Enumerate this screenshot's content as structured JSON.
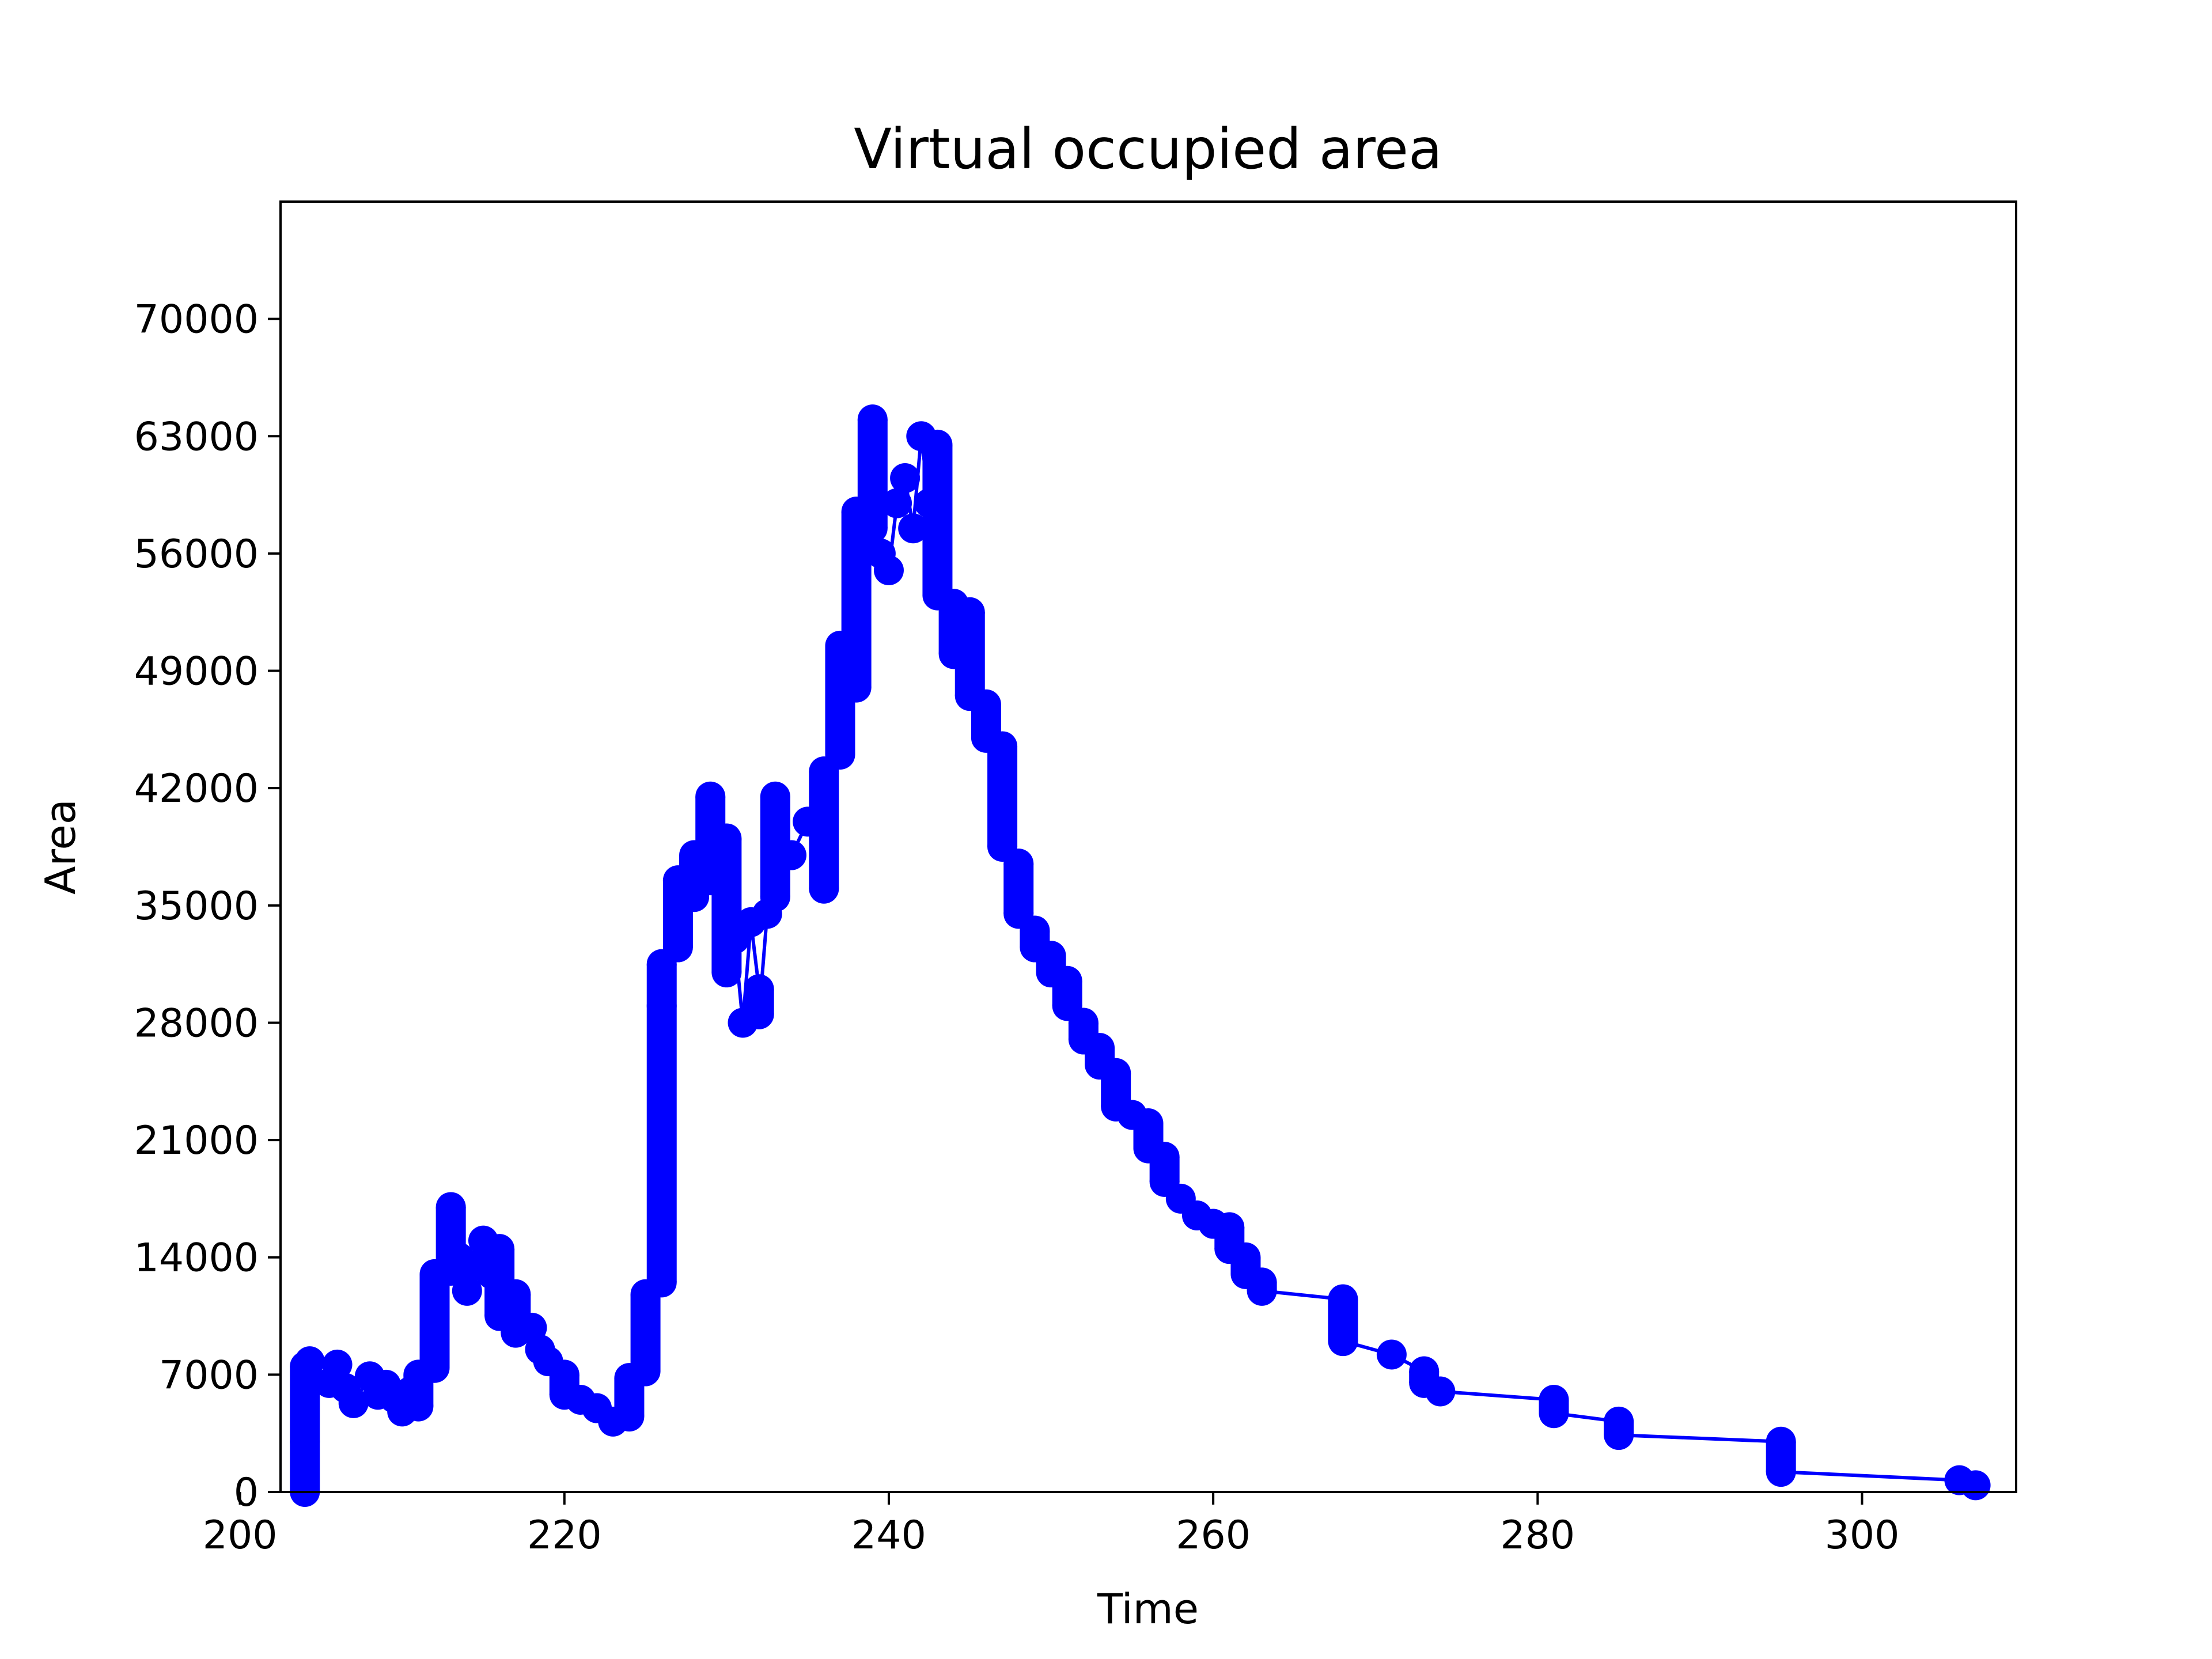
{
  "chart_data": {
    "type": "line",
    "title": "Virtual occupied area",
    "xlabel": "Time",
    "ylabel": "Area",
    "xlim": [
      202.5,
      309.5
    ],
    "ylim": [
      0,
      77000
    ],
    "xticks": [
      200,
      220,
      240,
      260,
      280,
      300
    ],
    "yticks": [
      0,
      7000,
      14000,
      21000,
      28000,
      35000,
      42000,
      49000,
      56000,
      63000,
      70000
    ],
    "grid": false,
    "legend": "none",
    "color": "#0000ff",
    "series": [
      {
        "marker": "circle",
        "points": [
          [
            204,
            0
          ],
          [
            204,
            3000
          ],
          [
            204,
            7500
          ],
          [
            204.3,
            7800
          ],
          [
            205.5,
            6500
          ],
          [
            206,
            7600
          ],
          [
            206.5,
            6200
          ],
          [
            207,
            5300
          ],
          [
            208,
            6900
          ],
          [
            208.5,
            5800
          ],
          [
            209,
            6400
          ],
          [
            209.5,
            5600
          ],
          [
            210,
            4800
          ],
          [
            210.5,
            6000
          ],
          [
            211,
            5100
          ],
          [
            211,
            7000
          ],
          [
            212,
            7400
          ],
          [
            212,
            13000
          ],
          [
            213,
            13200
          ],
          [
            213,
            17000
          ],
          [
            213.5,
            14000
          ],
          [
            214,
            12000
          ],
          [
            214.5,
            13500
          ],
          [
            215,
            15000
          ],
          [
            215.5,
            13000
          ],
          [
            216,
            14500
          ],
          [
            216,
            10500
          ],
          [
            217,
            11800
          ],
          [
            217,
            9500
          ],
          [
            218,
            9800
          ],
          [
            218.5,
            8500
          ],
          [
            219,
            7800
          ],
          [
            220,
            7000
          ],
          [
            220,
            5800
          ],
          [
            221,
            5500
          ],
          [
            222,
            5000
          ],
          [
            223,
            4200
          ],
          [
            224,
            4500
          ],
          [
            224,
            6800
          ],
          [
            225,
            7200
          ],
          [
            225,
            11800
          ],
          [
            226,
            12500
          ],
          [
            226,
            29000
          ],
          [
            226,
            31500
          ],
          [
            227,
            32500
          ],
          [
            227,
            36500
          ],
          [
            228,
            35500
          ],
          [
            228,
            38000
          ],
          [
            229,
            36500
          ],
          [
            229,
            41500
          ],
          [
            229.5,
            37000
          ],
          [
            230,
            39000
          ],
          [
            230,
            31000
          ],
          [
            230.5,
            33000
          ],
          [
            231,
            28000
          ],
          [
            231.5,
            34000
          ],
          [
            232,
            30000
          ],
          [
            232,
            28500
          ],
          [
            232.5,
            34500
          ],
          [
            233,
            35500
          ],
          [
            233,
            41500
          ],
          [
            234,
            38000
          ],
          [
            235,
            40000
          ],
          [
            236,
            36000
          ],
          [
            236,
            43000
          ],
          [
            237,
            44000
          ],
          [
            237,
            50500
          ],
          [
            238,
            48000
          ],
          [
            238,
            58500
          ],
          [
            239,
            57500
          ],
          [
            239,
            64000
          ],
          [
            239.5,
            56000
          ],
          [
            240,
            55000
          ],
          [
            240.5,
            59000
          ],
          [
            241,
            60500
          ],
          [
            241.5,
            57500
          ],
          [
            242,
            63000
          ],
          [
            242.5,
            59000
          ],
          [
            243,
            62500
          ],
          [
            243,
            53500
          ],
          [
            244,
            53000
          ],
          [
            244,
            50000
          ],
          [
            245,
            52500
          ],
          [
            245,
            47500
          ],
          [
            246,
            47000
          ],
          [
            246,
            45000
          ],
          [
            247,
            44500
          ],
          [
            247,
            38500
          ],
          [
            248,
            37500
          ],
          [
            248,
            34500
          ],
          [
            249,
            33500
          ],
          [
            249,
            32500
          ],
          [
            250,
            32000
          ],
          [
            250,
            31000
          ],
          [
            251,
            30500
          ],
          [
            251,
            29000
          ],
          [
            252,
            28000
          ],
          [
            252,
            27000
          ],
          [
            253,
            26500
          ],
          [
            253,
            25500
          ],
          [
            254,
            25000
          ],
          [
            254,
            23000
          ],
          [
            255,
            22500
          ],
          [
            256,
            22000
          ],
          [
            256,
            20500
          ],
          [
            257,
            20000
          ],
          [
            257,
            18500
          ],
          [
            258,
            17500
          ],
          [
            259,
            16500
          ],
          [
            260,
            16000
          ],
          [
            261,
            15800
          ],
          [
            261,
            14500
          ],
          [
            262,
            14000
          ],
          [
            262,
            13000
          ],
          [
            263,
            12500
          ],
          [
            263,
            12000
          ],
          [
            268,
            11500
          ],
          [
            268,
            9000
          ],
          [
            271,
            8200
          ],
          [
            273,
            7200
          ],
          [
            273,
            6500
          ],
          [
            274,
            6000
          ],
          [
            281,
            5500
          ],
          [
            281,
            4700
          ],
          [
            285,
            4200
          ],
          [
            285,
            3400
          ],
          [
            295,
            3000
          ],
          [
            295,
            1200
          ],
          [
            306,
            700
          ],
          [
            307,
            400
          ]
        ]
      }
    ]
  }
}
